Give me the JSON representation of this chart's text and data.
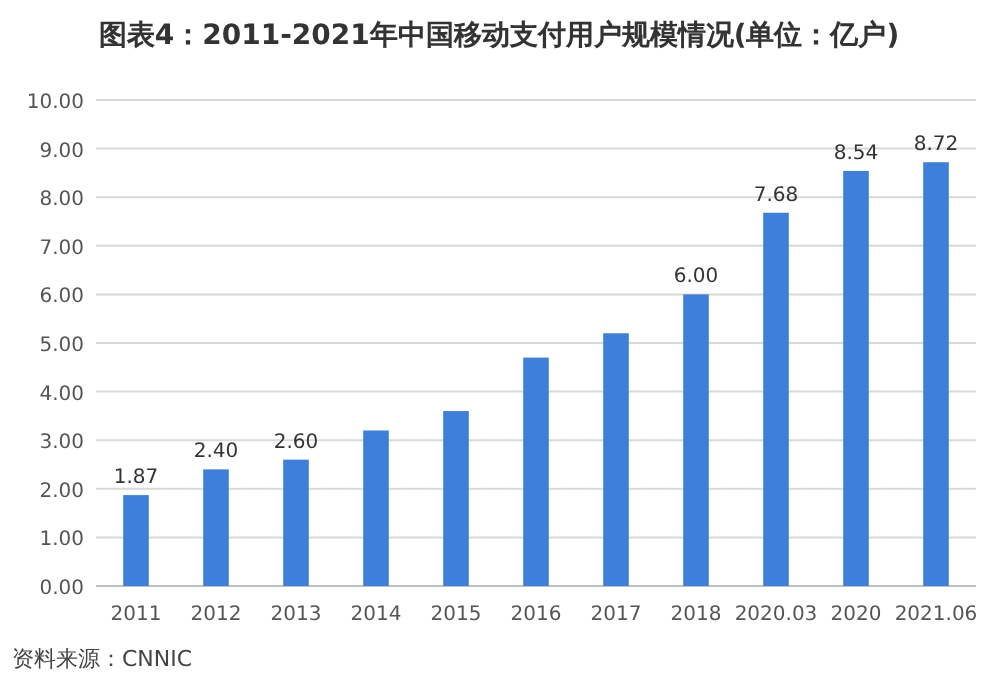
{
  "chart_data": {
    "type": "bar",
    "title": "图表4：2011-2021年中国移动支付用户规模情况(单位：亿户)",
    "categories": [
      "2011",
      "2012",
      "2013",
      "2014",
      "2015",
      "2016",
      "2017",
      "2018",
      "2020.03",
      "2020",
      "2021.06"
    ],
    "values": [
      1.87,
      2.4,
      2.6,
      3.2,
      3.6,
      4.7,
      5.2,
      6.0,
      7.68,
      8.54,
      8.72
    ],
    "value_labels": [
      "1.87",
      "2.40",
      "2.60",
      null,
      null,
      null,
      null,
      "6.00",
      "7.68",
      "8.54",
      "8.72"
    ],
    "color": "#3f7fdc",
    "ylim": [
      0,
      10
    ],
    "yticks": [
      {
        "value": 0,
        "label": "0.00"
      },
      {
        "value": 1,
        "label": "1.00"
      },
      {
        "value": 2,
        "label": "2.00"
      },
      {
        "value": 3,
        "label": "3.00"
      },
      {
        "value": 4,
        "label": "4.00"
      },
      {
        "value": 5,
        "label": "5.00"
      },
      {
        "value": 6,
        "label": "6.00"
      },
      {
        "value": 7,
        "label": "7.00"
      },
      {
        "value": 8,
        "label": "8.00"
      },
      {
        "value": 9,
        "label": "9.00"
      },
      {
        "value": 10,
        "label": "10.00"
      }
    ],
    "grid": "y",
    "annotations": [
      "资料来源：CNNIC"
    ]
  }
}
